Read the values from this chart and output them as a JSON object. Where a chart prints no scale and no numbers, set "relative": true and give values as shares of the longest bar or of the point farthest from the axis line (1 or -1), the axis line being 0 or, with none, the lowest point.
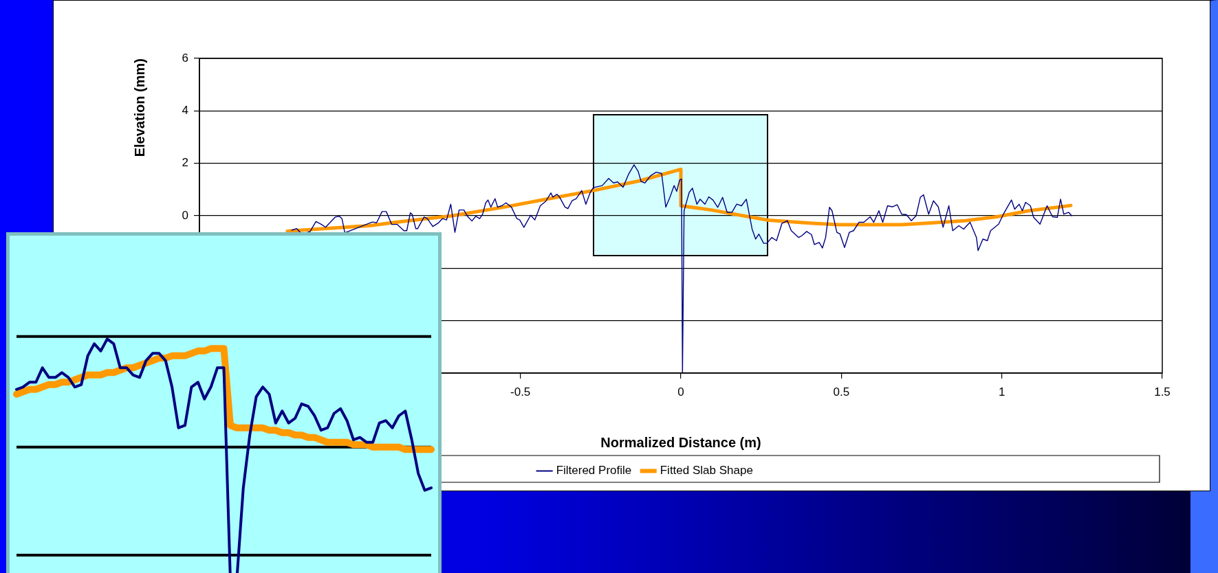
{
  "chart_data": [
    {
      "type": "line",
      "xlabel": "Normalized Distance (m)",
      "ylabel": "Elevation (mm)",
      "xlim": [
        -1.5,
        1.5
      ],
      "xticks": [
        -0.5,
        0,
        0.5,
        1,
        1.5
      ],
      "ylim": [
        -6,
        6
      ],
      "yticks": [
        {
          "value": -6,
          "label": null
        },
        {
          "value": -4,
          "label": null
        },
        {
          "value": -2,
          "label": null
        },
        0,
        2,
        4,
        6
      ],
      "grid": "y",
      "legend": "bottom",
      "series": [
        {
          "name": "Filtered Profile",
          "color": "#000080",
          "x": [
            -1.212,
            -1.197,
            -1.185,
            -1.167,
            -1.155,
            -1.137,
            -1.12,
            -1.107,
            -1.077,
            -1.064,
            -1.056,
            -1.047,
            -0.961,
            -0.948,
            -0.931,
            -0.918,
            -0.901,
            -0.884,
            -0.863,
            -0.854,
            -0.843,
            -0.837,
            -0.826,
            -0.82,
            -0.8,
            -0.79,
            -0.773,
            -0.755,
            -0.743,
            -0.73,
            -0.717,
            -0.704,
            -0.691,
            -0.676,
            -0.665,
            -0.651,
            -0.639,
            -0.627,
            -0.618,
            -0.608,
            -0.601,
            -0.592,
            -0.579,
            -0.571,
            -0.558,
            -0.545,
            -0.528,
            -0.511,
            -0.502,
            -0.489,
            -0.468,
            -0.455,
            -0.438,
            -0.421,
            -0.405,
            -0.399,
            -0.386,
            -0.378,
            -0.361,
            -0.352,
            -0.339,
            -0.326,
            -0.309,
            -0.296,
            -0.283,
            -0.273,
            -0.245,
            -0.225,
            -0.21,
            -0.197,
            -0.18,
            -0.163,
            -0.146,
            -0.133,
            -0.124,
            -0.112,
            -0.094,
            -0.077,
            -0.06,
            -0.047,
            -0.034,
            -0.021,
            -0.013,
            -0.004,
            0.002,
            0.005,
            0.01,
            0.026,
            0.036,
            0.05,
            0.06,
            0.075,
            0.087,
            0.1,
            0.115,
            0.13,
            0.144,
            0.159,
            0.174,
            0.189,
            0.204,
            0.222,
            0.233,
            0.243,
            0.258,
            0.268,
            0.283,
            0.298,
            0.315,
            0.332,
            0.344,
            0.367,
            0.377,
            0.392,
            0.407,
            0.416,
            0.431,
            0.441,
            0.451,
            0.463,
            0.471,
            0.486,
            0.496,
            0.51,
            0.525,
            0.538,
            0.555,
            0.57,
            0.59,
            0.601,
            0.617,
            0.629,
            0.644,
            0.659,
            0.674,
            0.688,
            0.703,
            0.718,
            0.733,
            0.746,
            0.756,
            0.772,
            0.787,
            0.802,
            0.817,
            0.835,
            0.847,
            0.866,
            0.881,
            0.901,
            0.921,
            0.926,
            0.941,
            0.955,
            0.965,
            0.99,
            1.005,
            1.03,
            1.04,
            1.054,
            1.064,
            1.074,
            1.089,
            1.099,
            1.119,
            1.141,
            1.158,
            1.173,
            1.183,
            1.193,
            1.208,
            1.218
          ],
          "values": [
            -0.55,
            -0.49,
            -0.65,
            -0.65,
            -0.6,
            -0.22,
            -0.33,
            -0.44,
            -0.05,
            -0.02,
            -0.11,
            -0.65,
            -0.24,
            -0.27,
            0.16,
            0.16,
            -0.33,
            -0.33,
            -0.57,
            -0.57,
            0.11,
            0.05,
            -0.49,
            -0.49,
            -0.05,
            -0.11,
            -0.41,
            -0.27,
            -0.11,
            -0.16,
            0.44,
            -0.63,
            0.22,
            0.22,
            -0.02,
            -0.2,
            -0.02,
            -0.11,
            0.05,
            0.49,
            0.6,
            0.33,
            0.65,
            0.33,
            0.38,
            0.49,
            0.33,
            -0.11,
            -0.16,
            -0.44,
            0.02,
            -0.16,
            0.38,
            0.55,
            0.87,
            0.71,
            0.82,
            0.71,
            0.33,
            0.27,
            0.57,
            0.65,
            0.96,
            0.44,
            0.87,
            1.07,
            1.15,
            1.42,
            1.25,
            1.29,
            1.09,
            1.58,
            1.94,
            1.69,
            1.31,
            1.25,
            1.53,
            1.66,
            1.61,
            0.33,
            0.71,
            1.15,
            0.93,
            1.36,
            1.4,
            -6,
            0.19,
            0.89,
            1.05,
            0.44,
            0.63,
            0.44,
            0.72,
            0.6,
            0.32,
            0.7,
            0.13,
            0.13,
            0.44,
            0.38,
            0.63,
            -0.51,
            -0.89,
            -0.7,
            -1.05,
            -1.05,
            -0.83,
            -0.95,
            -0.29,
            -0.19,
            -0.57,
            -0.83,
            -0.76,
            -0.6,
            -0.72,
            -1.1,
            -1.02,
            -1.23,
            -0.83,
            0.32,
            0.19,
            -0.63,
            -0.7,
            -1.21,
            -0.63,
            -0.57,
            -0.25,
            -0.25,
            -0.04,
            -0.25,
            0.19,
            -0.25,
            0.38,
            0.34,
            0.42,
            0.06,
            0.04,
            -0.19,
            0.0,
            0.7,
            0.8,
            0.06,
            0.57,
            0.34,
            -0.44,
            0.38,
            -0.57,
            -0.38,
            -0.51,
            -0.25,
            -0.83,
            -1.33,
            -0.89,
            -0.95,
            -0.57,
            -0.32,
            0.06,
            0.6,
            0.25,
            0.44,
            0.19,
            0.51,
            0.38,
            -0.06,
            -0.32,
            0.38,
            -0.04,
            -0.06,
            0.63,
            0.06,
            0.13,
            0.0
          ]
        },
        {
          "name": "Fitted Slab Shape",
          "color": "#ff9900",
          "x": [
            -1.226,
            -1.112,
            -0.97,
            -0.884,
            -0.712,
            -0.541,
            -0.412,
            -0.273,
            -0.129,
            0,
            0,
            0.095,
            0.194,
            0.273,
            0.411,
            0.491,
            0.688,
            0.787,
            0.886,
            0.985,
            1.084,
            1.215
          ],
          "values": [
            -0.59,
            -0.49,
            -0.38,
            -0.24,
            0.0,
            0.35,
            0.65,
            0.96,
            1.33,
            1.77,
            0.38,
            0.22,
            0.0,
            -0.17,
            -0.29,
            -0.34,
            -0.34,
            -0.27,
            -0.19,
            -0.04,
            0.19,
            0.39
          ]
        }
      ]
    },
    {
      "type": "line",
      "relative": true,
      "categories": [
        null,
        null,
        null,
        null,
        null,
        null,
        null,
        null,
        null,
        null,
        null,
        null,
        null,
        null,
        null,
        null,
        null,
        null,
        null,
        null,
        null,
        null,
        null,
        null,
        null,
        null,
        null,
        null,
        null,
        null,
        null,
        null,
        null,
        null,
        null,
        null,
        null,
        null,
        null,
        null,
        null,
        null,
        null,
        null,
        null,
        null,
        null,
        null,
        null,
        null,
        null,
        null,
        null,
        null,
        null,
        null,
        null,
        null,
        null,
        null,
        null,
        null,
        null,
        null,
        null
      ],
      "ref_lines": [
        {
          "axis": "y",
          "value": 1.01,
          "color": "#000000"
        },
        {
          "axis": "y",
          "value": 0.55,
          "color": "#000000"
        },
        {
          "axis": "y",
          "value": 0.1,
          "color": "#000000"
        }
      ],
      "series": [
        {
          "color": "#000080",
          "values": [
            0.79,
            0.8,
            0.82,
            0.82,
            0.88,
            0.84,
            0.84,
            0.86,
            0.84,
            0.8,
            0.81,
            0.93,
            0.98,
            0.95,
            1,
            0.98,
            0.88,
            0.88,
            0.85,
            0.84,
            0.91,
            0.94,
            0.94,
            0.91,
            0.8,
            0.63,
            0.64,
            0.8,
            0.82,
            0.75,
            0.8,
            0.88,
            0.88,
            0,
            0,
            0.38,
            0.6,
            0.76,
            0.8,
            0.77,
            0.65,
            0.7,
            0.65,
            0.67,
            0.73,
            0.72,
            0.68,
            0.62,
            0.63,
            0.69,
            0.71,
            0.66,
            0.58,
            0.59,
            0.57,
            0.57,
            0.65,
            0.66,
            0.63,
            0.68,
            0.7,
            0.58,
            0.44,
            0.37,
            0.38
          ]
        },
        {
          "color": "#ff9900",
          "values": [
            0.77,
            0.78,
            0.79,
            0.79,
            0.8,
            0.81,
            0.81,
            0.82,
            0.82,
            0.83,
            0.84,
            0.85,
            0.85,
            0.85,
            0.86,
            0.86,
            0.87,
            0.88,
            0.88,
            0.89,
            0.9,
            0.91,
            0.92,
            0.92,
            0.93,
            0.93,
            0.93,
            0.94,
            0.95,
            0.95,
            0.96,
            0.96,
            0.96,
            0.64,
            0.63,
            0.63,
            0.63,
            0.63,
            0.63,
            0.62,
            0.62,
            0.61,
            0.61,
            0.6,
            0.6,
            0.59,
            0.59,
            0.58,
            0.57,
            0.57,
            0.57,
            0.57,
            0.56,
            0.56,
            0.56,
            0.55,
            0.55,
            0.55,
            0.55,
            0.55,
            0.54,
            0.54,
            0.54,
            0.54,
            0.54
          ]
        }
      ]
    }
  ]
}
